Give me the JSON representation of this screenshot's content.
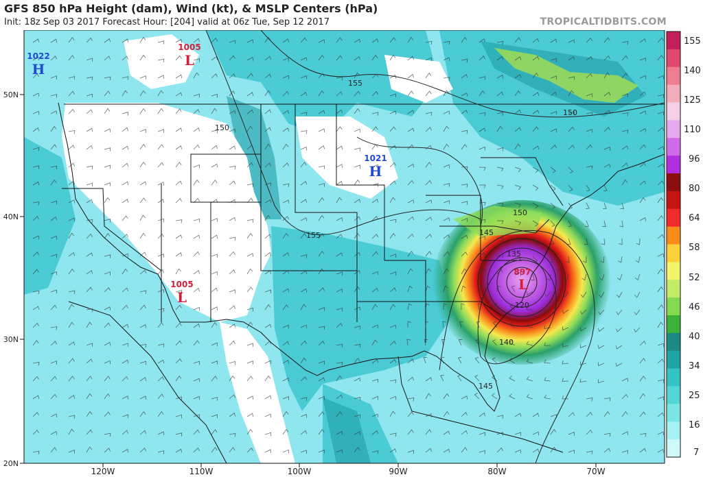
{
  "header": {
    "title": "GFS 850 hPa Height (dam), Wind (kt), & MSLP Centers (hPa)",
    "subtitle": "Init: 18z Sep 03 2017   Forecast Hour: [204]   valid at 06z Tue, Sep 12 2017",
    "brand": "TROPICALTIDBITS.COM"
  },
  "map": {
    "lon_labels": [
      "120W",
      "110W",
      "100W",
      "90W",
      "80W",
      "70W"
    ],
    "lat_labels": [
      "50N",
      "40N",
      "30N",
      "20N"
    ],
    "contour_labels": [
      "155",
      "150",
      "155",
      "150",
      "150",
      "145",
      "135",
      "120",
      "140",
      "145"
    ],
    "pressure_centers": [
      {
        "type": "H",
        "value": "1022",
        "color": "#1f49d6"
      },
      {
        "type": "L",
        "value": "1005",
        "color": "#d11f3c"
      },
      {
        "type": "H",
        "value": "1021",
        "color": "#1f49d6"
      },
      {
        "type": "L",
        "value": "1005",
        "color": "#d11f3c"
      },
      {
        "type": "L",
        "value": "897",
        "color": "#d11f3c"
      }
    ]
  },
  "colorbar": {
    "labels": [
      "155",
      "140",
      "125",
      "110",
      "96",
      "80",
      "64",
      "58",
      "52",
      "46",
      "40",
      "34",
      "25",
      "16",
      "7"
    ],
    "colors": [
      "#c41e5a",
      "#e0486f",
      "#ee7d92",
      "#f4aebb",
      "#f5cfe6",
      "#e7a9ef",
      "#cf6be8",
      "#b22fe0",
      "#8b0f0f",
      "#c41414",
      "#f02b2b",
      "#f98a1c",
      "#fbd03a",
      "#f1f46a",
      "#c2ec68",
      "#84d94e",
      "#3db23a",
      "#1c8a82",
      "#20a3a3",
      "#33c5c5",
      "#55d6d6",
      "#7ae6e6",
      "#a6f1f1",
      "#cff8f8"
    ]
  }
}
